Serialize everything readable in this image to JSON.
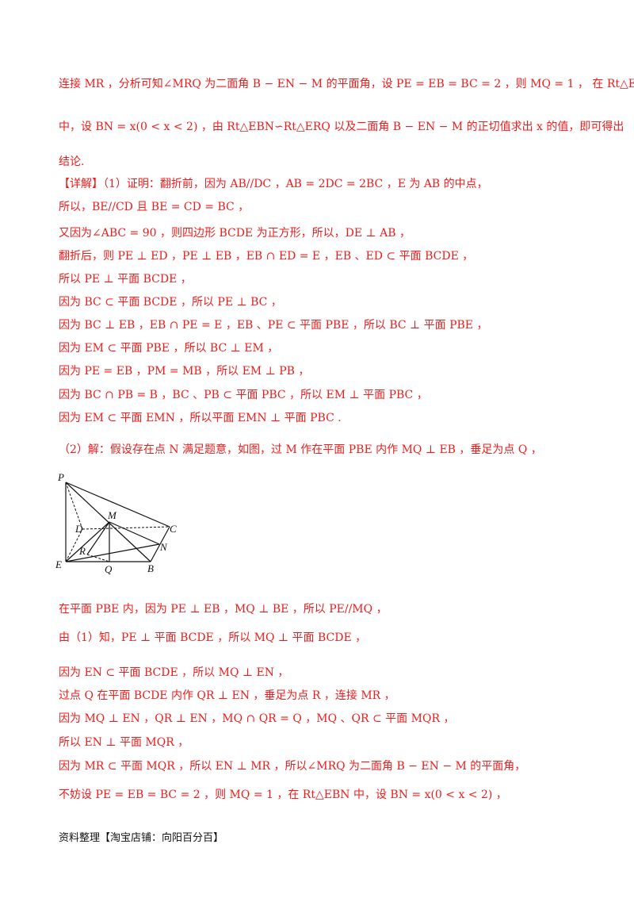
{
  "lines": [
    "连接 MR ，分析可知∠MRQ 为二面角 B − EN − M 的平面角，设 PE = EB = BC = 2 ，则 MQ = 1 ， 在 Rt△EBN",
    "中，设 BN = x(0 < x < 2) ，由 Rt△EBN∽Rt△ERQ 以及二面角 B − EN − M 的正切值求出 x 的值，即可得出",
    "结论.",
    "【详解】（1）证明：翻折前，因为 AB//DC ，AB = 2DC = 2BC ，E 为 AB 的中点，",
    "所以，BE//CD 且 BE = CD = BC ，",
    "又因为∠ABC = 90 ，则四边形 BCDE 为正方形，所以，DE ⊥ AB ，",
    "翻折后，则 PE ⊥ ED ，PE ⊥ EB ，EB ∩ ED = E ，EB 、ED ⊂ 平面 BCDE ，",
    "所以 PE ⊥ 平面 BCDE ，",
    "因为 BC ⊂ 平面 BCDE ，所以 PE ⊥ BC ，",
    "因为 BC ⊥ EB ，EB ∩ PE = E ，EB 、PE ⊂ 平面 PBE ，所以 BC ⊥ 平面 PBE ，",
    "因为 EM ⊂ 平面 PBE ，所以 BC ⊥ EM ，",
    "因为 PE = EB ，PM = MB ，所以 EM ⊥ PB ，",
    "因为 BC ∩ PB = B ，BC 、PB ⊂ 平面 PBC ，所以 EM ⊥ 平面 PBC ，",
    "因为 EM ⊂ 平面 EMN ，所以平面 EMN ⊥ 平面 PBC .",
    "（2）解：假设存在点 N 满足题意，如图，过 M 作在平面 PBE 内作 MQ ⊥ EB ，垂足为点 Q ，",
    "在平面 PBE 内，因为 PE ⊥ EB ，MQ ⊥ BE ，所以 PE//MQ ，",
    "由（1）知，PE ⊥ 平面 BCDE ，所以 MQ ⊥ 平面 BCDE ，",
    "因为 EN ⊂ 平面 BCDE ，所以 MQ ⊥ EN ，",
    "过点 Q 在平面 BCDE 内作 QR ⊥ EN ，垂足为点 R ，连接 MR ，",
    "因为 MQ ⊥ EN ，QR ⊥ EN ，MQ ∩ QR = Q ，MQ 、QR ⊂ 平面 MQR ，",
    "所以 EN ⊥ 平面 MQR ，",
    "因为 MR ⊂ 平面 MQR ，所以 EN ⊥ MR ，所以∠MRQ 为二面角 B − EN − M 的平面角，",
    "不妨设 PE = EB = BC = 2 ，则 MQ = 1 ，在 Rt△EBN 中，设 BN = x(0 < x < 2) ，"
  ],
  "figure_labels": {
    "P": "P",
    "D": "D",
    "M": "M",
    "C": "C",
    "N": "N",
    "R": "R",
    "E": "E",
    "Q": "Q",
    "B": "B"
  },
  "footer": "资料整理【淘宝店铺：向阳百分百】"
}
